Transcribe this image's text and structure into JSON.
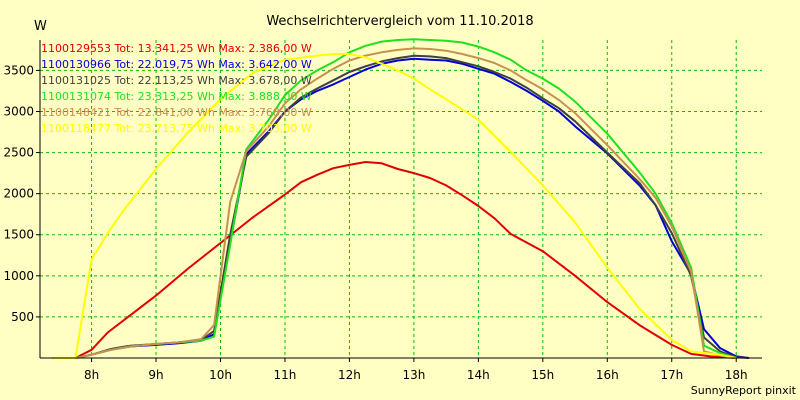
{
  "chart_data": {
    "type": "line",
    "title": "Wechselrichtervergleich vom 11.10.2018",
    "ylabel": "W",
    "xlabel": "",
    "footer": "SunnyReport pinxit",
    "ylim": [
      0,
      3870
    ],
    "xlim": [
      7.2,
      18.4
    ],
    "grid": true,
    "legend_position": "top-left",
    "x_ticks": [
      8,
      9,
      10,
      11,
      12,
      13,
      14,
      15,
      16,
      17,
      18
    ],
    "x_tick_labels": [
      "8h",
      "9h",
      "10h",
      "11h",
      "12h",
      "13h",
      "14h",
      "15h",
      "16h",
      "17h",
      "18h"
    ],
    "y_ticks": [
      500,
      1000,
      1500,
      2000,
      2500,
      3000,
      3500
    ],
    "y_tick_labels": [
      "500",
      "1000",
      "1500",
      "2000",
      "2500",
      "3000",
      "3500"
    ],
    "series": [
      {
        "name": "1100129553",
        "legend": "1100129553 Tot: 13.341,25 Wh Max: 2.386,00 W",
        "color": "#e00000",
        "points": [
          [
            7.4,
            0
          ],
          [
            7.75,
            0
          ],
          [
            8.0,
            100
          ],
          [
            8.25,
            310
          ],
          [
            8.6,
            520
          ],
          [
            9.0,
            760
          ],
          [
            9.5,
            1090
          ],
          [
            10.0,
            1400
          ],
          [
            10.5,
            1710
          ],
          [
            11.0,
            1990
          ],
          [
            11.25,
            2140
          ],
          [
            11.5,
            2230
          ],
          [
            11.75,
            2310
          ],
          [
            12.0,
            2350
          ],
          [
            12.25,
            2385
          ],
          [
            12.5,
            2370
          ],
          [
            12.75,
            2300
          ],
          [
            13.0,
            2250
          ],
          [
            13.25,
            2190
          ],
          [
            13.5,
            2100
          ],
          [
            13.75,
            1980
          ],
          [
            14.0,
            1850
          ],
          [
            14.25,
            1700
          ],
          [
            14.5,
            1510
          ],
          [
            15.0,
            1300
          ],
          [
            15.5,
            1000
          ],
          [
            16.0,
            680
          ],
          [
            16.5,
            400
          ],
          [
            17.0,
            160
          ],
          [
            17.3,
            50
          ],
          [
            17.6,
            20
          ],
          [
            18.0,
            0
          ]
        ]
      },
      {
        "name": "1100130966",
        "legend": "1100130966 Tot: 22.019,75 Wh Max: 3.642,00 W",
        "color": "#0000d8",
        "points": [
          [
            7.4,
            0
          ],
          [
            7.75,
            0
          ],
          [
            8.0,
            40
          ],
          [
            8.3,
            100
          ],
          [
            8.6,
            140
          ],
          [
            9.0,
            160
          ],
          [
            9.35,
            180
          ],
          [
            9.7,
            210
          ],
          [
            9.9,
            290
          ],
          [
            10.15,
            1400
          ],
          [
            10.4,
            2480
          ],
          [
            10.75,
            2760
          ],
          [
            11.0,
            3000
          ],
          [
            11.25,
            3150
          ],
          [
            11.5,
            3250
          ],
          [
            11.75,
            3330
          ],
          [
            12.0,
            3420
          ],
          [
            12.25,
            3510
          ],
          [
            12.5,
            3580
          ],
          [
            12.75,
            3620
          ],
          [
            13.0,
            3642
          ],
          [
            13.25,
            3630
          ],
          [
            13.5,
            3620
          ],
          [
            13.75,
            3580
          ],
          [
            14.0,
            3520
          ],
          [
            14.25,
            3460
          ],
          [
            14.5,
            3360
          ],
          [
            14.75,
            3250
          ],
          [
            15.0,
            3130
          ],
          [
            15.25,
            3000
          ],
          [
            15.5,
            2820
          ],
          [
            16.0,
            2490
          ],
          [
            16.5,
            2100
          ],
          [
            16.75,
            1860
          ],
          [
            17.0,
            1420
          ],
          [
            17.3,
            1020
          ],
          [
            17.5,
            350
          ],
          [
            17.75,
            120
          ],
          [
            18.0,
            20
          ],
          [
            18.2,
            0
          ]
        ]
      },
      {
        "name": "1100131025",
        "legend": "1100131025 Tot: 22.113,25 Wh Max: 3.678,00 W",
        "color": "#404040",
        "points": [
          [
            7.4,
            0
          ],
          [
            7.75,
            0
          ],
          [
            8.0,
            40
          ],
          [
            8.3,
            110
          ],
          [
            8.6,
            150
          ],
          [
            9.0,
            170
          ],
          [
            9.35,
            190
          ],
          [
            9.7,
            220
          ],
          [
            9.9,
            330
          ],
          [
            10.15,
            1500
          ],
          [
            10.4,
            2450
          ],
          [
            10.75,
            2740
          ],
          [
            11.0,
            3000
          ],
          [
            11.25,
            3170
          ],
          [
            11.5,
            3280
          ],
          [
            11.75,
            3380
          ],
          [
            12.0,
            3480
          ],
          [
            12.25,
            3550
          ],
          [
            12.5,
            3610
          ],
          [
            12.75,
            3650
          ],
          [
            13.0,
            3678
          ],
          [
            13.25,
            3670
          ],
          [
            13.5,
            3650
          ],
          [
            13.75,
            3600
          ],
          [
            14.0,
            3550
          ],
          [
            14.25,
            3480
          ],
          [
            14.5,
            3400
          ],
          [
            14.75,
            3290
          ],
          [
            15.0,
            3160
          ],
          [
            15.25,
            3040
          ],
          [
            15.5,
            2880
          ],
          [
            16.0,
            2500
          ],
          [
            16.5,
            2130
          ],
          [
            16.75,
            1860
          ],
          [
            17.0,
            1520
          ],
          [
            17.3,
            1000
          ],
          [
            17.5,
            250
          ],
          [
            17.75,
            80
          ],
          [
            18.0,
            10
          ],
          [
            18.2,
            0
          ]
        ]
      },
      {
        "name": "1100131074",
        "legend": "1100131074 Tot: 23.313,25 Wh Max: 3.888,00 W",
        "color": "#20e020",
        "points": [
          [
            7.4,
            0
          ],
          [
            7.75,
            0
          ],
          [
            8.0,
            40
          ],
          [
            8.3,
            100
          ],
          [
            8.6,
            140
          ],
          [
            9.0,
            170
          ],
          [
            9.35,
            190
          ],
          [
            9.7,
            210
          ],
          [
            9.9,
            260
          ],
          [
            10.15,
            1380
          ],
          [
            10.4,
            2540
          ],
          [
            10.75,
            2900
          ],
          [
            11.0,
            3200
          ],
          [
            11.25,
            3380
          ],
          [
            11.5,
            3500
          ],
          [
            11.75,
            3600
          ],
          [
            12.0,
            3720
          ],
          [
            12.25,
            3800
          ],
          [
            12.5,
            3850
          ],
          [
            12.75,
            3870
          ],
          [
            13.0,
            3880
          ],
          [
            13.25,
            3870
          ],
          [
            13.5,
            3860
          ],
          [
            13.75,
            3840
          ],
          [
            14.0,
            3790
          ],
          [
            14.25,
            3720
          ],
          [
            14.5,
            3630
          ],
          [
            14.75,
            3500
          ],
          [
            15.0,
            3400
          ],
          [
            15.25,
            3280
          ],
          [
            15.5,
            3120
          ],
          [
            16.0,
            2730
          ],
          [
            16.5,
            2260
          ],
          [
            16.75,
            2000
          ],
          [
            17.0,
            1640
          ],
          [
            17.3,
            1100
          ],
          [
            17.5,
            150
          ],
          [
            17.75,
            60
          ],
          [
            18.0,
            0
          ]
        ]
      },
      {
        "name": "1100148421",
        "legend": "1100148421 Tot: 22.841,00 Wh Max: 3.768,00 W",
        "color": "#c89050",
        "points": [
          [
            7.4,
            0
          ],
          [
            7.75,
            0
          ],
          [
            8.0,
            40
          ],
          [
            8.3,
            100
          ],
          [
            8.6,
            140
          ],
          [
            9.0,
            170
          ],
          [
            9.35,
            190
          ],
          [
            9.7,
            230
          ],
          [
            9.9,
            400
          ],
          [
            10.15,
            1900
          ],
          [
            10.4,
            2520
          ],
          [
            10.75,
            2820
          ],
          [
            11.0,
            3100
          ],
          [
            11.25,
            3270
          ],
          [
            11.5,
            3400
          ],
          [
            11.75,
            3520
          ],
          [
            12.0,
            3620
          ],
          [
            12.25,
            3680
          ],
          [
            12.5,
            3720
          ],
          [
            12.75,
            3750
          ],
          [
            13.0,
            3768
          ],
          [
            13.25,
            3760
          ],
          [
            13.5,
            3740
          ],
          [
            13.75,
            3700
          ],
          [
            14.0,
            3650
          ],
          [
            14.25,
            3590
          ],
          [
            14.5,
            3500
          ],
          [
            14.75,
            3380
          ],
          [
            15.0,
            3270
          ],
          [
            15.25,
            3140
          ],
          [
            15.5,
            2980
          ],
          [
            16.0,
            2590
          ],
          [
            16.5,
            2180
          ],
          [
            16.75,
            1950
          ],
          [
            17.0,
            1600
          ],
          [
            17.3,
            1050
          ],
          [
            17.5,
            80
          ],
          [
            17.75,
            30
          ],
          [
            18.0,
            0
          ]
        ]
      },
      {
        "name": "1100118477",
        "legend": "1100118477 Tot: 23.713,75 Wh Max: 3.703,00 W",
        "color": "#ffff00",
        "points": [
          [
            7.4,
            0
          ],
          [
            7.75,
            0
          ],
          [
            8.0,
            1200
          ],
          [
            8.25,
            1520
          ],
          [
            8.5,
            1800
          ],
          [
            9.0,
            2300
          ],
          [
            9.5,
            2750
          ],
          [
            10.0,
            3150
          ],
          [
            10.5,
            3470
          ],
          [
            11.0,
            3630
          ],
          [
            11.5,
            3680
          ],
          [
            11.75,
            3700
          ],
          [
            12.0,
            3700
          ],
          [
            12.25,
            3660
          ],
          [
            12.5,
            3580
          ],
          [
            12.75,
            3500
          ],
          [
            13.0,
            3400
          ],
          [
            13.25,
            3270
          ],
          [
            13.5,
            3150
          ],
          [
            14.0,
            2900
          ],
          [
            14.5,
            2510
          ],
          [
            15.0,
            2100
          ],
          [
            15.5,
            1650
          ],
          [
            16.0,
            1100
          ],
          [
            16.5,
            600
          ],
          [
            17.0,
            220
          ],
          [
            17.3,
            80
          ],
          [
            17.75,
            40
          ],
          [
            18.0,
            0
          ]
        ]
      }
    ]
  }
}
